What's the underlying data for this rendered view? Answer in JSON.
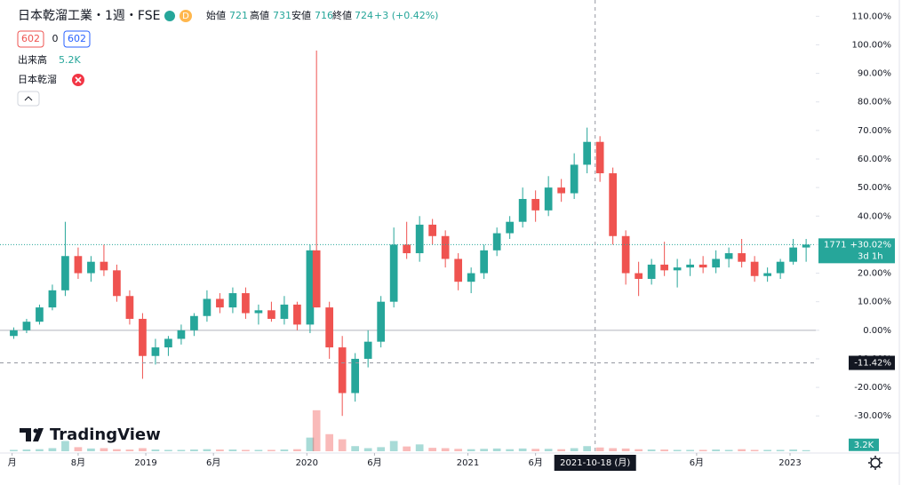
{
  "chart_data": {
    "type": "candlestick",
    "title": "日本乾溜工業・1週・FSE",
    "interval_badge": "D",
    "ohlc_labels": [
      "始値",
      "高値",
      "安値",
      "終値"
    ],
    "ohlc_values": [
      721,
      731,
      716,
      724
    ],
    "change": "+3 (+0.42%)",
    "order_buttons": [
      "602",
      "0",
      "602"
    ],
    "volume_label": "出来高",
    "volume_value": "5.2K",
    "indicator_name": "日本乾溜",
    "brand": "TradingView",
    "up_color": "#26a69a",
    "down_color": "#ef5350",
    "x": [
      2018.18,
      2018.26,
      2018.34,
      2018.42,
      2018.5,
      2018.58,
      2018.66,
      2018.74,
      2018.82,
      2018.9,
      2018.98,
      2019.06,
      2019.14,
      2019.22,
      2019.3,
      2019.38,
      2019.46,
      2019.54,
      2019.62,
      2019.7,
      2019.78,
      2019.86,
      2019.94,
      2020.02,
      2020.06,
      2020.14,
      2020.22,
      2020.3,
      2020.38,
      2020.46,
      2020.54,
      2020.62,
      2020.7,
      2020.78,
      2020.86,
      2020.94,
      2021.02,
      2021.1,
      2021.18,
      2021.26,
      2021.34,
      2021.42,
      2021.5,
      2021.58,
      2021.66,
      2021.74,
      2021.82,
      2021.9,
      2021.98,
      2022.06,
      2022.14,
      2022.22,
      2022.3,
      2022.38,
      2022.46,
      2022.54,
      2022.62,
      2022.7,
      2022.78,
      2022.86,
      2022.94,
      2023.02,
      2023.1
    ],
    "open": [
      -2,
      0,
      3,
      8,
      14,
      26,
      20,
      24,
      21,
      12,
      4,
      -9,
      -6,
      -3,
      0,
      5,
      11,
      8,
      13,
      6,
      7,
      4,
      9,
      2,
      28,
      8,
      -6,
      -22,
      -10,
      -4,
      10,
      30,
      27,
      37,
      33,
      25,
      17,
      20,
      28,
      34,
      38,
      46,
      42,
      50,
      48,
      58,
      66,
      55,
      33,
      20,
      18,
      23,
      21,
      22,
      23,
      22,
      25,
      27,
      24,
      19,
      20,
      24,
      29
    ],
    "high": [
      1,
      4,
      9,
      16,
      38,
      29,
      26,
      30,
      23,
      14,
      6,
      -3,
      -2,
      2,
      6,
      14,
      13,
      15,
      15,
      9,
      10,
      12,
      10,
      30,
      98,
      10,
      -2,
      -8,
      0,
      12,
      36,
      38,
      40,
      39,
      35,
      27,
      22,
      30,
      36,
      40,
      50,
      49,
      54,
      53,
      62,
      71,
      68,
      57,
      35,
      24,
      25,
      31,
      25,
      25,
      26,
      28,
      29,
      32,
      26,
      22,
      25,
      32,
      32
    ],
    "low": [
      -3,
      -1,
      2,
      7,
      12,
      18,
      17,
      19,
      10,
      2,
      -17,
      -12,
      -9,
      -5,
      -2,
      3,
      6,
      6,
      4,
      2,
      3,
      2,
      0,
      -1,
      8,
      -10,
      -30,
      -25,
      -13,
      -6,
      8,
      25,
      24,
      30,
      22,
      14,
      13,
      18,
      26,
      32,
      36,
      38,
      40,
      45,
      46,
      55,
      52,
      30,
      16,
      12,
      16,
      19,
      15,
      19,
      20,
      20,
      22,
      22,
      17,
      17,
      18,
      23,
      24
    ],
    "close": [
      0,
      3,
      8,
      14,
      26,
      20,
      24,
      21,
      12,
      4,
      -9,
      -6,
      -3,
      0,
      5,
      11,
      8,
      13,
      6,
      7,
      4,
      9,
      2,
      28,
      8,
      -6,
      -22,
      -10,
      -4,
      10,
      30,
      27,
      37,
      33,
      25,
      17,
      20,
      28,
      34,
      38,
      46,
      42,
      50,
      48,
      58,
      66,
      55,
      33,
      20,
      18,
      23,
      21,
      22,
      23,
      22,
      25,
      27,
      24,
      19,
      20,
      24,
      29,
      30.02
    ],
    "volume": [
      4000,
      5000,
      6000,
      9000,
      30000,
      12000,
      8000,
      9000,
      6000,
      5000,
      9000,
      5000,
      4000,
      4000,
      5000,
      6000,
      5000,
      5000,
      4000,
      4000,
      4000,
      5000,
      6000,
      40000,
      120000,
      50000,
      35000,
      15000,
      9000,
      12000,
      30000,
      14000,
      20000,
      10000,
      9000,
      7000,
      6000,
      7000,
      8000,
      6000,
      8000,
      7000,
      7000,
      6000,
      9000,
      15000,
      11000,
      9000,
      8000,
      6000,
      5000,
      5000,
      4000,
      4000,
      4000,
      5000,
      4000,
      6000,
      4000,
      4000,
      4000,
      5000,
      3200
    ],
    "vlim": [
      0,
      130000
    ],
    "last_volume_label": "3.2K",
    "xlim": [
      2018.15,
      2023.16
    ],
    "xticks": [
      {
        "value": 2018.17,
        "label": "月"
      },
      {
        "value": 2018.58,
        "label": "8月"
      },
      2019,
      {
        "value": 2019.42,
        "label": "6月"
      },
      2020,
      {
        "value": 2020.42,
        "label": "6月"
      },
      2021,
      {
        "value": 2021.42,
        "label": "6月"
      },
      {
        "value": 2022.42,
        "label": "6月"
      },
      2023
    ],
    "ylim": [
      -43,
      115.7
    ],
    "yticks": [
      {
        "value": -30,
        "label": "-30.00%"
      },
      {
        "value": -20,
        "label": "-20.00%"
      },
      {
        "value": -10,
        "label": "-10.00%"
      },
      {
        "value": 0,
        "label": "0.00%"
      },
      {
        "value": 10,
        "label": "10.00%"
      },
      {
        "value": 20,
        "label": "20.00%"
      },
      {
        "value": 30,
        "label": "30.00%"
      },
      {
        "value": 40,
        "label": "40.00%"
      },
      {
        "value": 50,
        "label": "50.00%"
      },
      {
        "value": 60,
        "label": "60.00%"
      },
      {
        "value": 70,
        "label": "70.00%"
      },
      {
        "value": 80,
        "label": "80.00%"
      },
      {
        "value": 90,
        "label": "90.00%"
      },
      {
        "value": 100,
        "label": "100.00%"
      },
      {
        "value": 110,
        "label": "110.00%"
      }
    ],
    "last": {
      "value": 30.02,
      "label": "+30.02%",
      "price": "1771",
      "countdown": "3d 1h"
    },
    "crosshair": {
      "x": 2021.79,
      "x_label": "2021-10-18 (月)",
      "y": -11.42,
      "y_label": "-11.42%"
    }
  }
}
